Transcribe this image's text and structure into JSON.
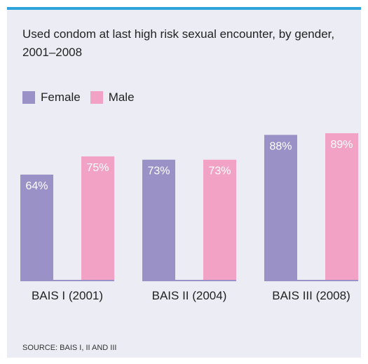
{
  "header": {
    "title": "Used condom at last high risk sexual encounter, by gender, 2001–2008"
  },
  "footer": {
    "source": "SOURCE: BAIS I, II AND III"
  },
  "colors": {
    "accent": "#2ea3dc",
    "female": "#9a92c7",
    "male": "#f2a3c5",
    "baseline": "#9a92c7"
  },
  "chart_data": {
    "type": "bar",
    "title": "Used condom at last high risk sexual encounter, by gender, 2001–2008",
    "xlabel": "",
    "ylabel": "",
    "ylim": [
      0,
      100
    ],
    "grid": false,
    "legend": "top-left",
    "categories": [
      "BAIS I (2001)",
      "BAIS II (2004)",
      "BAIS III (2008)"
    ],
    "series": [
      {
        "name": "Female",
        "values": [
          64,
          73,
          88
        ],
        "labels": [
          "64%",
          "73%",
          "88%"
        ]
      },
      {
        "name": "Male",
        "values": [
          75,
          73,
          89
        ],
        "labels": [
          "75%",
          "73%",
          "89%"
        ]
      }
    ]
  }
}
